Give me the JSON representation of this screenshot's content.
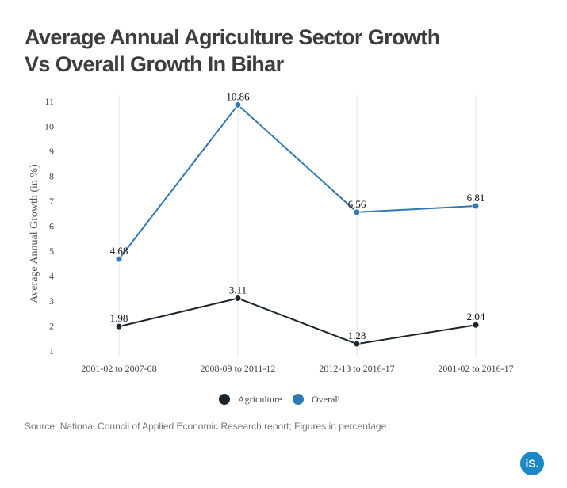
{
  "title_lines": [
    "Average Annual Agriculture Sector Growth",
    "Vs Overall Growth In Bihar"
  ],
  "source": "Source: National Council of Applied Economic Research report; Figures in percentage",
  "brand": {
    "text": "iS.",
    "color": "#1e88c7"
  },
  "chart_data": {
    "type": "line",
    "title": "Average Annual Agriculture Sector Growth Vs Overall Growth In Bihar",
    "categories": [
      "2001-02 to 2007-08",
      "2008-09 to 2011-12",
      "2012-13 to 2016-17",
      "2001-02 to 2016-17"
    ],
    "ylabel": "Average Annual Growth (in %)",
    "xlabel": "",
    "ylim": [
      1,
      11
    ],
    "yticks": [
      1,
      2,
      3,
      4,
      5,
      6,
      7,
      8,
      9,
      10,
      11
    ],
    "grid": {
      "vertical": true,
      "horizontal": false
    },
    "legend": "bottom-center",
    "series": [
      {
        "name": "Agriculture",
        "color": "#1b252e",
        "values": [
          1.98,
          3.11,
          1.28,
          2.04
        ],
        "labels": [
          "1.98",
          "3.11",
          "1.28",
          "2.04"
        ]
      },
      {
        "name": "Overall",
        "color": "#2f7ab5",
        "values": [
          4.68,
          10.86,
          6.56,
          6.81
        ],
        "labels": [
          "4.68",
          "10.86",
          "6.56",
          "6.81"
        ]
      }
    ]
  }
}
